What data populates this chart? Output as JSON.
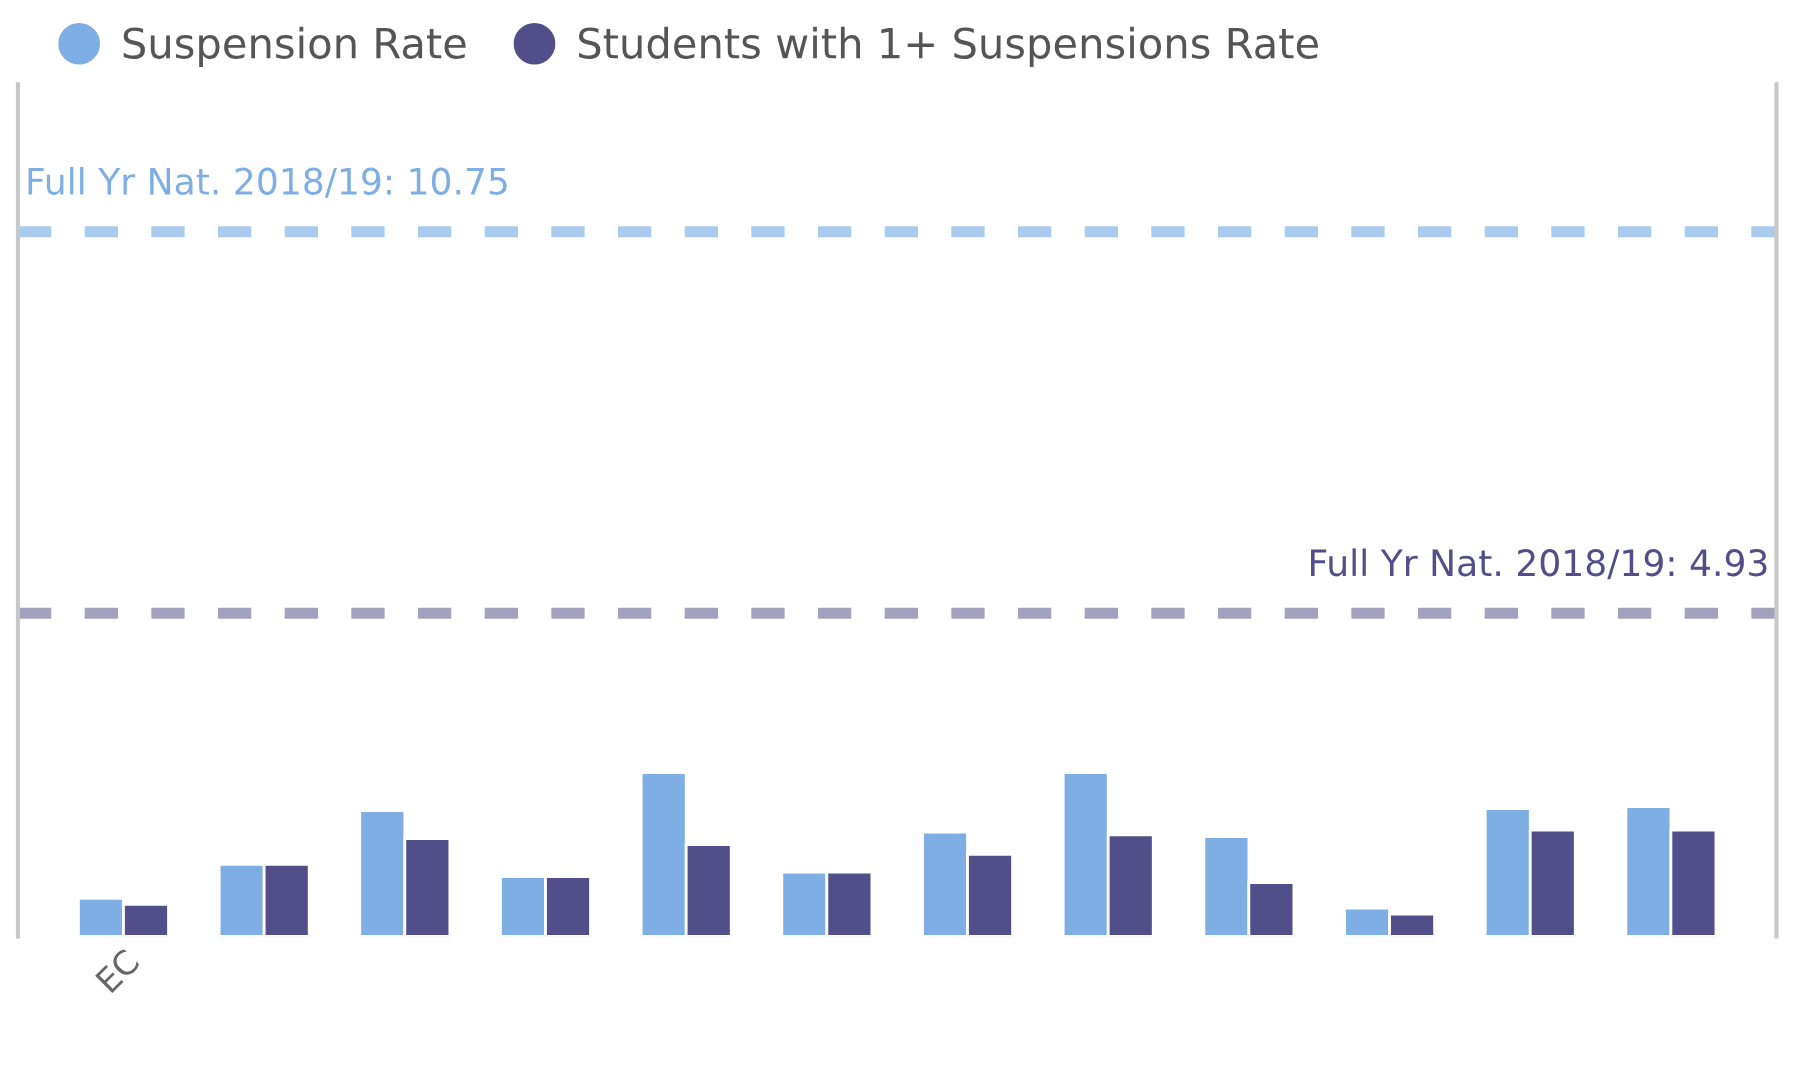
{
  "chart_data": {
    "type": "bar",
    "categories": [
      "EC",
      null,
      null,
      null,
      null,
      null,
      null,
      null,
      null,
      null,
      null,
      null
    ],
    "series": [
      {
        "name": "Suspension Rate",
        "color": "#7eaee3",
        "values": [
          0.58,
          1.1,
          1.92,
          0.91,
          2.5,
          0.98,
          1.59,
          2.5,
          1.52,
          0.43,
          1.95,
          1.98
        ]
      },
      {
        "name": "Students with 1+ Suspensions Rate",
        "color": "#514e8a",
        "values": [
          0.49,
          1.1,
          1.49,
          0.91,
          1.4,
          0.98,
          1.25,
          1.55,
          0.82,
          0.34,
          1.62,
          1.62
        ]
      }
    ],
    "ylim": [
      0,
      13
    ],
    "tick_labels": "x",
    "ref_lines": [
      {
        "axis": "y",
        "value": 10.75,
        "label": "Full Yr Nat. 2018/19: 10.75",
        "color": "#a9ccee",
        "line_style": "dashed"
      },
      {
        "axis": "y",
        "value": 4.93,
        "label": "Full Yr Nat. 2018/19: 4.93",
        "color": "#a2a2bf",
        "line_style": "dashed"
      }
    ],
    "legend": "top left",
    "grid": false
  }
}
